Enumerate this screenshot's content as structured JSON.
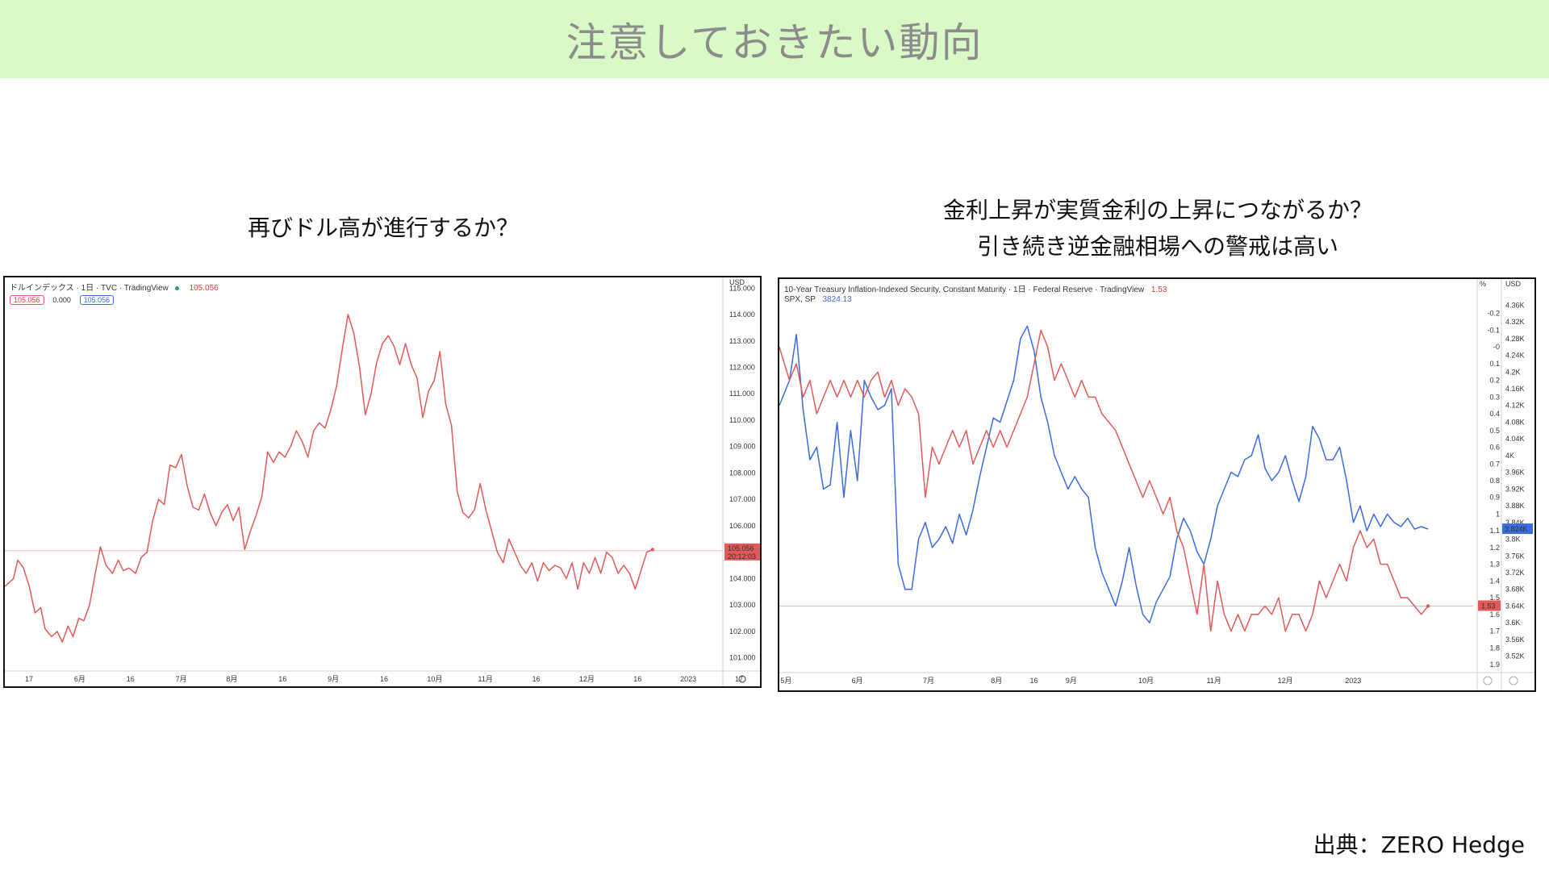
{
  "slide": {
    "title": "注意しておきたい動向",
    "left_caption": "再びドル高が進行するか？",
    "right_caption_line1": "金利上昇が実質金利の上昇につながるか？",
    "right_caption_line2": "引き続き逆金融相場への警戒は高い",
    "source": "出典：ZERO Hedge"
  },
  "left_chart_header": {
    "title": "ドルインデックス · 1日 · TVC · TradingView",
    "last_value": "105.056",
    "pill_red": "105.056",
    "pill_mid": "0.000",
    "pill_blue": "105.056",
    "currency": "USD",
    "price_tag": "105.056",
    "time_tag": "20:12:03"
  },
  "right_chart_header": {
    "title": "10-Year Treasury Inflation-Indexed Security, Constant Maturity · 1日 · Federal Reserve · TradingView",
    "last_value": "1.53",
    "series2_name": "SPX, SP",
    "series2_value": "3824.13",
    "left_unit": "%",
    "right_unit": "USD",
    "tag_red": "1.53",
    "tag_blue": "3.824K"
  },
  "colors": {
    "banner": "#d9f9c6",
    "title_text": "#8c8c8c",
    "red_series": "#e05a5a",
    "blue_series": "#3b6be0"
  },
  "chart_data": [
    {
      "type": "line",
      "title": "ドルインデックス · 1日 · TVC · TradingView",
      "x_ticks": [
        "17",
        "6月",
        "16",
        "7月",
        "8月",
        "16",
        "9月",
        "16",
        "10月",
        "11月",
        "16",
        "12月",
        "16",
        "2023",
        "17"
      ],
      "y_ticks": [
        "115.000",
        "114.000",
        "113.000",
        "112.000",
        "111.000",
        "110.000",
        "109.000",
        "108.000",
        "107.000",
        "106.000",
        "104.000",
        "103.000",
        "102.000",
        "101.000"
      ],
      "ylim": [
        100.5,
        115.1
      ],
      "x_range": [
        0,
        100
      ],
      "reference_line": 105.056,
      "series": [
        {
          "name": "ドルインデックス",
          "color": "#e05a5a",
          "x": [
            0,
            1.2,
            1.8,
            2.6,
            3.4,
            4.2,
            5.0,
            5.6,
            6.5,
            7.3,
            8.0,
            8.8,
            9.5,
            10.3,
            11.0,
            11.8,
            12.6,
            13.3,
            14.1,
            15.0,
            15.8,
            16.5,
            17.3,
            18.2,
            19.0,
            19.8,
            20.6,
            21.4,
            22.2,
            23.0,
            23.8,
            24.6,
            25.4,
            26.2,
            27.0,
            27.8,
            28.6,
            29.4,
            30.2,
            31.0,
            31.8,
            32.6,
            33.4,
            34.2,
            35.0,
            35.8,
            36.6,
            37.4,
            38.2,
            39.0,
            39.8,
            40.6,
            41.4,
            42.2,
            43.0,
            43.8,
            44.6,
            45.4,
            46.2,
            47.0,
            47.8,
            48.6,
            49.4,
            50.2,
            51.0,
            51.8,
            52.6,
            53.4,
            54.2,
            55.0,
            55.8,
            56.6,
            57.4,
            58.2,
            59.0,
            59.8,
            60.6,
            61.4,
            62.2,
            63.0,
            63.8,
            64.6,
            65.4,
            66.2,
            67.0,
            67.8,
            68.6,
            69.4,
            70.2,
            71.0,
            71.8,
            72.6,
            73.4,
            74.2,
            75.0,
            75.8,
            76.6,
            77.4,
            78.2,
            79.0,
            79.8,
            80.6,
            81.4,
            82.2,
            83.0,
            83.8,
            84.6,
            85.4,
            86.2,
            87.0,
            87.8,
            88.6,
            89.4,
            90.2
          ],
          "y": [
            103.7,
            104.0,
            104.7,
            104.4,
            103.7,
            102.7,
            102.9,
            102.1,
            101.8,
            102.0,
            101.6,
            102.2,
            101.8,
            102.5,
            102.4,
            103.0,
            104.2,
            105.2,
            104.5,
            104.2,
            104.7,
            104.3,
            104.4,
            104.2,
            104.8,
            105.0,
            106.2,
            107.0,
            106.8,
            108.3,
            108.2,
            108.7,
            107.5,
            106.7,
            106.6,
            107.2,
            106.5,
            106.0,
            106.5,
            106.8,
            106.2,
            106.7,
            105.1,
            105.8,
            106.4,
            107.1,
            108.8,
            108.4,
            108.8,
            108.6,
            109.0,
            109.6,
            109.2,
            108.6,
            109.6,
            109.9,
            109.7,
            110.4,
            111.3,
            112.7,
            114.0,
            113.3,
            112.0,
            110.2,
            111.0,
            112.2,
            112.9,
            113.2,
            112.8,
            112.1,
            112.9,
            112.1,
            111.6,
            110.1,
            111.1,
            111.5,
            112.6,
            110.6,
            109.8,
            107.3,
            106.5,
            106.3,
            106.6,
            107.6,
            106.6,
            105.8,
            105.0,
            104.6,
            105.5,
            105.0,
            104.5,
            104.2,
            104.6,
            103.9,
            104.6,
            104.3,
            104.5,
            104.4,
            104.0,
            104.6,
            103.6,
            104.6,
            104.2,
            104.8,
            104.2,
            105.0,
            104.8,
            104.2,
            104.5,
            104.2,
            103.6,
            104.3,
            105.0,
            105.1
          ]
        }
      ]
    },
    {
      "type": "line",
      "title": "10-Year Treasury Inflation-Indexed Security, Constant Maturity · 1日 · Federal Reserve · TradingView",
      "x_ticks": [
        "5月",
        "6月",
        "7月",
        "8月",
        "16",
        "9月",
        "10月",
        "11月",
        "12月",
        "2023"
      ],
      "y_ticks_left": [
        "-0.2",
        "-0.1",
        "-0",
        "0.1",
        "0.2",
        "0.3",
        "0.4",
        "0.5",
        "0.6",
        "0.7",
        "0.8",
        "0.9",
        "1",
        "1.1",
        "1.2",
        "1.3",
        "1.4",
        "1.5",
        "1.6",
        "1.7",
        "1.8",
        "1.9"
      ],
      "y_ticks_right": [
        "4.36K",
        "4.32K",
        "4.28K",
        "4.24K",
        "4.2K",
        "4.16K",
        "4.12K",
        "4.08K",
        "4.04K",
        "4K",
        "3.96K",
        "3.92K",
        "3.88K",
        "3.84K",
        "3.8K",
        "3.76K",
        "3.72K",
        "3.68K",
        "3.64K",
        "3.6K",
        "3.56K",
        "3.52K"
      ],
      "ylim_left": [
        -0.3,
        1.9
      ],
      "ylim_right": [
        3500,
        4380
      ],
      "x_range": [
        0,
        100
      ],
      "series": [
        {
          "name": "10-Year Treasury Inflation-Indexed Security, Constant Maturity",
          "axis": "left",
          "color": "#e05a5a",
          "x": [
            0,
            1.5,
            2.5,
            3.5,
            4.5,
            5.5,
            6.5,
            7.5,
            8.5,
            9.5,
            10.5,
            11.5,
            12.5,
            13.5,
            14.5,
            15.5,
            16.5,
            17.5,
            18.5,
            19.5,
            20.5,
            21.5,
            22.5,
            23.5,
            24.5,
            25.5,
            26.5,
            27.5,
            28.5,
            29.5,
            30.5,
            31.5,
            32.5,
            33.5,
            34.5,
            35.5,
            36.5,
            37.5,
            38.5,
            39.5,
            40.5,
            41.5,
            42.5,
            43.5,
            44.5,
            45.5,
            46.5,
            47.5,
            48.5,
            49.5,
            50.5,
            51.5,
            52.5,
            53.5,
            54.5,
            55.5,
            56.5,
            57.5,
            58.5,
            59.5,
            60.5,
            61.5,
            62.5,
            63.5,
            64.5,
            65.5,
            66.5,
            67.5,
            68.5,
            69.5,
            70.5,
            71.5,
            72.5,
            73.5,
            74.5,
            75.5,
            76.5,
            77.5,
            78.5,
            79.5,
            80.5,
            81.5,
            82.5,
            83.5,
            84.5,
            85.5,
            86.5,
            87.5,
            88.5,
            89.5,
            90.5,
            91.5,
            92.5,
            93.5,
            94.5,
            95.5
          ],
          "y": [
            0.0,
            0.2,
            0.1,
            0.3,
            0.2,
            0.4,
            0.3,
            0.2,
            0.3,
            0.2,
            0.3,
            0.2,
            0.3,
            0.2,
            0.15,
            0.3,
            0.2,
            0.35,
            0.25,
            0.3,
            0.4,
            0.9,
            0.6,
            0.7,
            0.6,
            0.5,
            0.6,
            0.5,
            0.7,
            0.6,
            0.5,
            0.6,
            0.5,
            0.6,
            0.5,
            0.4,
            0.3,
            0.1,
            -0.1,
            0.0,
            0.2,
            0.1,
            0.2,
            0.3,
            0.2,
            0.3,
            0.3,
            0.4,
            0.45,
            0.5,
            0.6,
            0.7,
            0.8,
            0.9,
            0.8,
            0.9,
            1.0,
            0.9,
            1.1,
            1.2,
            1.4,
            1.6,
            1.3,
            1.7,
            1.4,
            1.6,
            1.7,
            1.6,
            1.7,
            1.6,
            1.6,
            1.55,
            1.6,
            1.5,
            1.7,
            1.6,
            1.6,
            1.7,
            1.6,
            1.4,
            1.5,
            1.4,
            1.3,
            1.4,
            1.2,
            1.1,
            1.2,
            1.15,
            1.3,
            1.3,
            1.4,
            1.5,
            1.5,
            1.55,
            1.6,
            1.55
          ]
        },
        {
          "name": "SPX, SP",
          "axis": "right",
          "color": "#3b6be0",
          "x": [
            0,
            1.5,
            2.5,
            3.5,
            4.5,
            5.5,
            6.5,
            7.5,
            8.5,
            9.5,
            10.5,
            11.5,
            12.5,
            13.5,
            14.5,
            15.5,
            16.5,
            17.5,
            18.5,
            19.5,
            20.5,
            21.5,
            22.5,
            23.5,
            24.5,
            25.5,
            26.5,
            27.5,
            28.5,
            29.5,
            30.5,
            31.5,
            32.5,
            33.5,
            34.5,
            35.5,
            36.5,
            37.5,
            38.5,
            39.5,
            40.5,
            41.5,
            42.5,
            43.5,
            44.5,
            45.5,
            46.5,
            47.5,
            48.5,
            49.5,
            50.5,
            51.5,
            52.5,
            53.5,
            54.5,
            55.5,
            56.5,
            57.5,
            58.5,
            59.5,
            60.5,
            61.5,
            62.5,
            63.5,
            64.5,
            65.5,
            66.5,
            67.5,
            68.5,
            69.5,
            70.5,
            71.5,
            72.5,
            73.5,
            74.5,
            75.5,
            76.5,
            77.5,
            78.5,
            79.5,
            80.5,
            81.5,
            82.5,
            83.5,
            84.5,
            85.5,
            86.5,
            87.5,
            88.5,
            89.5,
            90.5,
            91.5,
            92.5,
            93.5,
            94.5,
            95.5
          ],
          "y": [
            4120,
            4180,
            4290,
            4110,
            3990,
            4020,
            3920,
            3930,
            4080,
            3900,
            4060,
            3940,
            4180,
            4140,
            4110,
            4120,
            4160,
            3740,
            3680,
            3680,
            3800,
            3840,
            3780,
            3800,
            3830,
            3790,
            3860,
            3810,
            3870,
            3950,
            4020,
            4090,
            4080,
            4130,
            4180,
            4280,
            4310,
            4250,
            4140,
            4080,
            4000,
            3960,
            3920,
            3950,
            3920,
            3900,
            3780,
            3720,
            3680,
            3640,
            3700,
            3780,
            3690,
            3620,
            3600,
            3650,
            3680,
            3710,
            3800,
            3850,
            3820,
            3770,
            3740,
            3800,
            3880,
            3920,
            3960,
            3950,
            3990,
            4000,
            4050,
            3970,
            3940,
            3960,
            4000,
            3940,
            3890,
            3950,
            4070,
            4040,
            3990,
            3990,
            4020,
            3940,
            3840,
            3880,
            3820,
            3860,
            3830,
            3860,
            3840,
            3830,
            3850,
            3824,
            3830,
            3824
          ]
        }
      ]
    }
  ]
}
